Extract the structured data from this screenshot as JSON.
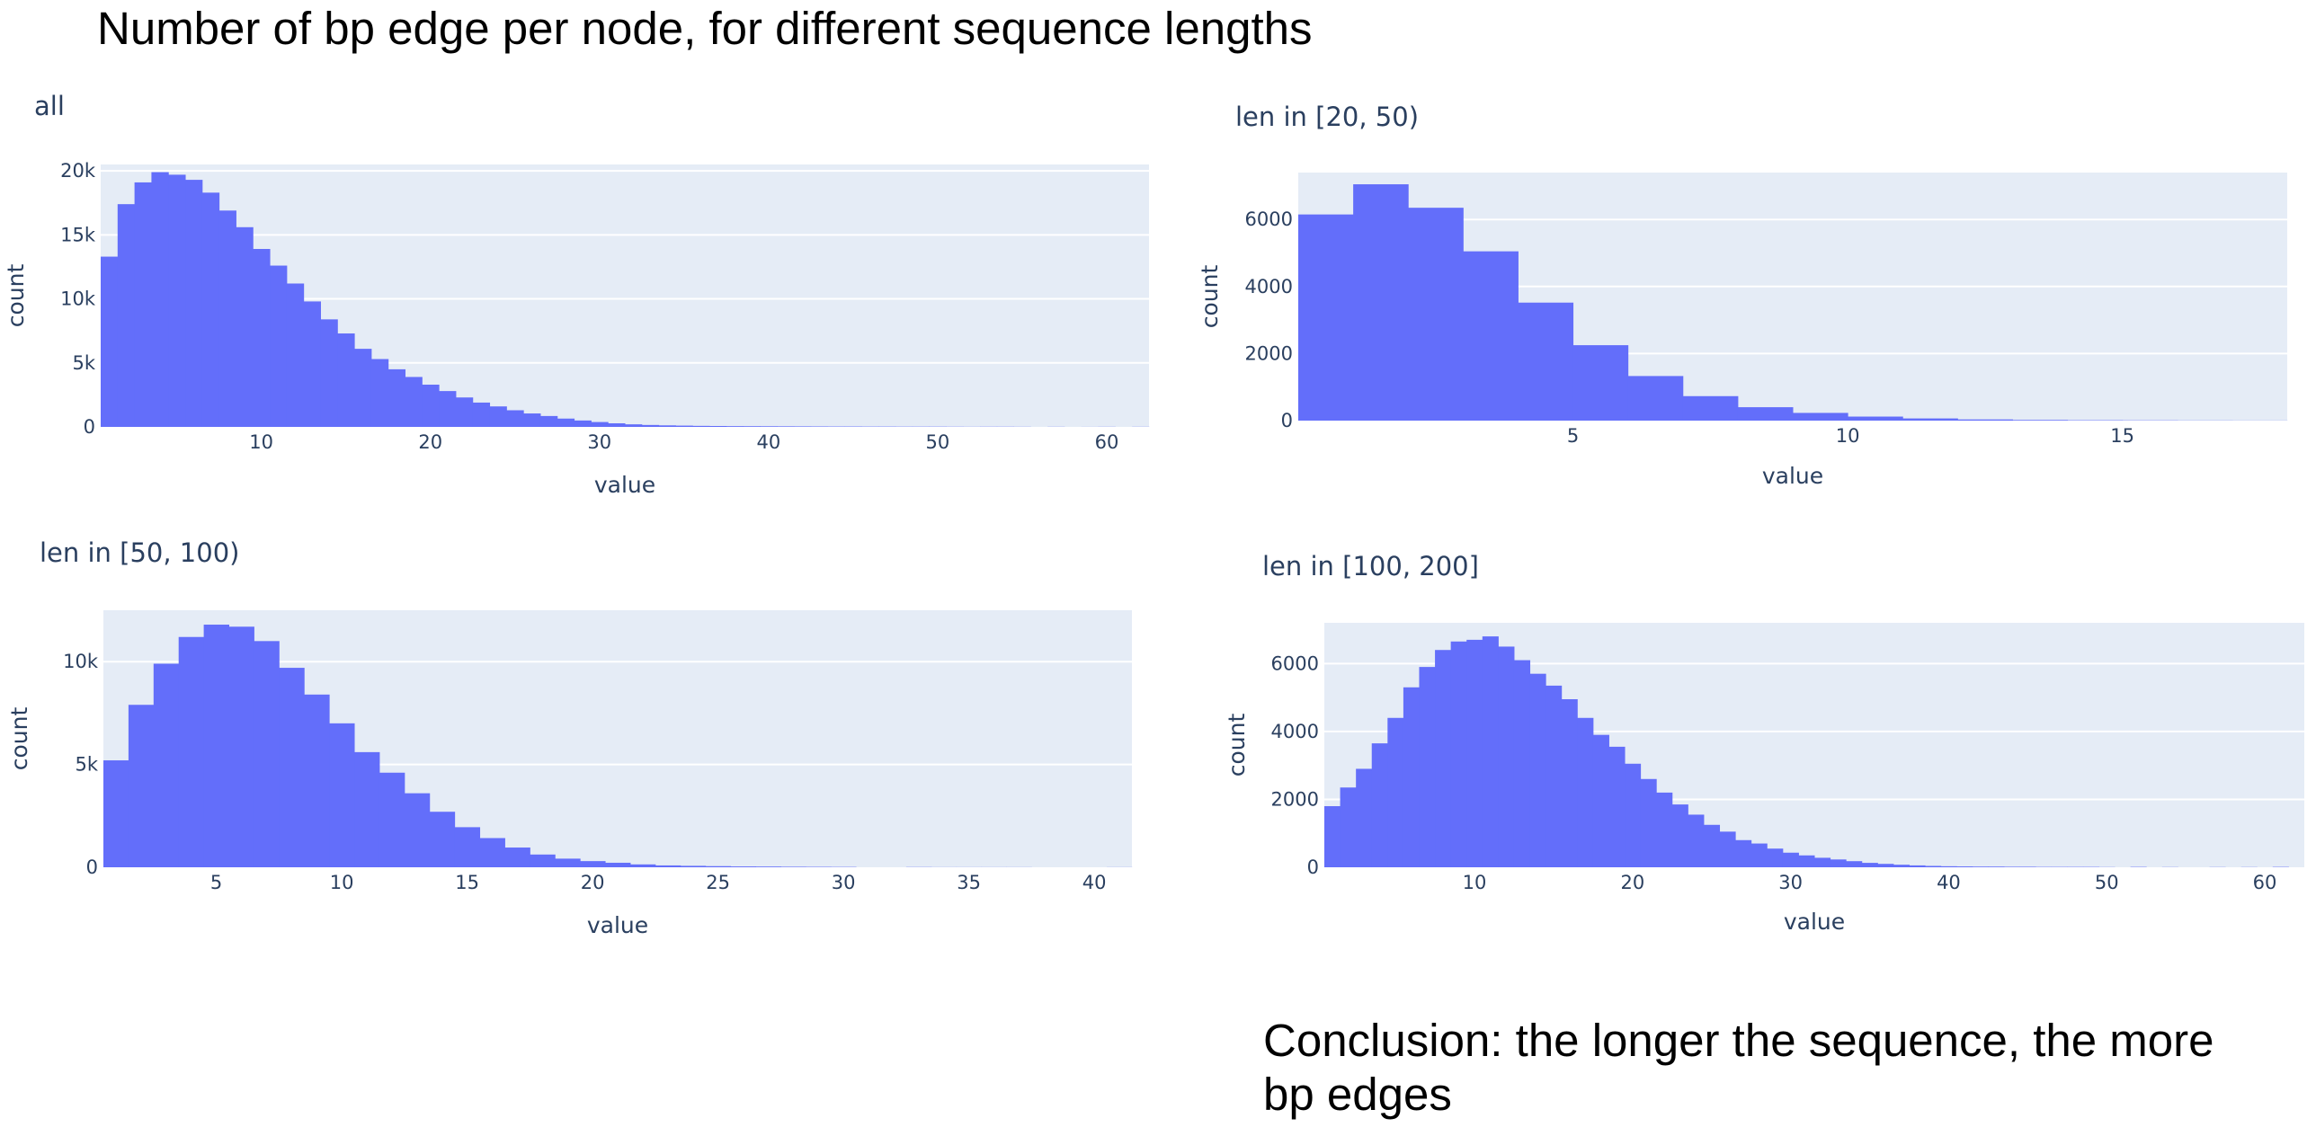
{
  "title": "Number of bp edge per node, for different sequence lengths",
  "conclusion": "Conclusion: the longer the sequence, the more bp edges",
  "colors": {
    "bar": "#636efa",
    "plot_bg": "#e5ecf6",
    "grid": "#ffffff",
    "text": "#2a3f5f"
  },
  "chart_data": [
    {
      "type": "bar",
      "title": "all",
      "xlabel": "value",
      "ylabel": "count",
      "xlim": [
        0.5,
        62.5
      ],
      "ylim": [
        0,
        20500
      ],
      "xticks": [
        10,
        20,
        30,
        40,
        50,
        60
      ],
      "yticks": [
        0,
        5000,
        10000,
        15000,
        20000
      ],
      "ytick_labels": [
        "0",
        "5k",
        "10k",
        "15k",
        "20k"
      ],
      "grid": true,
      "x": [
        1,
        2,
        3,
        4,
        5,
        6,
        7,
        8,
        9,
        10,
        11,
        12,
        13,
        14,
        15,
        16,
        17,
        18,
        19,
        20,
        21,
        22,
        23,
        24,
        25,
        26,
        27,
        28,
        29,
        30,
        31,
        32,
        33,
        34,
        35,
        36,
        37,
        38,
        39,
        40,
        41,
        42,
        43,
        44,
        45,
        46,
        47,
        48,
        49,
        50,
        51,
        52,
        53,
        54,
        55,
        56,
        57,
        58,
        59,
        60,
        61,
        62
      ],
      "values": [
        13300,
        17400,
        19100,
        19900,
        19700,
        19300,
        18300,
        16900,
        15600,
        13900,
        12600,
        11200,
        9800,
        8400,
        7300,
        6100,
        5300,
        4500,
        3900,
        3300,
        2800,
        2300,
        1900,
        1600,
        1300,
        1050,
        850,
        650,
        500,
        380,
        280,
        200,
        150,
        120,
        100,
        80,
        70,
        60,
        55,
        50,
        45,
        40,
        35,
        30,
        30,
        25,
        25,
        20,
        20,
        20,
        15,
        10,
        15,
        15,
        10,
        0,
        10,
        0,
        5,
        10,
        0,
        10
      ]
    },
    {
      "type": "bar",
      "title": "len in [20, 50)",
      "xlabel": "value",
      "ylabel": "count",
      "xlim": [
        0,
        18
      ],
      "ylim": [
        0,
        7400
      ],
      "xticks": [
        5,
        10,
        15
      ],
      "yticks": [
        0,
        2000,
        4000,
        6000
      ],
      "ytick_labels": [
        "0",
        "2000",
        "4000",
        "6000"
      ],
      "grid": true,
      "x": [
        0.5,
        1.5,
        2.5,
        3.5,
        4.5,
        5.5,
        6.5,
        7.5,
        8.5,
        9.5,
        10.5,
        11.5,
        12.5,
        13.5,
        14.5,
        15.5,
        16.5,
        17.5
      ],
      "values": [
        6150,
        7050,
        6350,
        5050,
        3520,
        2250,
        1330,
        730,
        400,
        230,
        120,
        65,
        35,
        20,
        12,
        8,
        5,
        3
      ]
    },
    {
      "type": "bar",
      "title": "len in [50, 100)",
      "xlabel": "value",
      "ylabel": "count",
      "xlim": [
        0.5,
        41.5
      ],
      "ylim": [
        0,
        12500
      ],
      "xticks": [
        5,
        10,
        15,
        20,
        25,
        30,
        35,
        40
      ],
      "yticks": [
        0,
        5000,
        10000
      ],
      "ytick_labels": [
        "0",
        "5k",
        "10k"
      ],
      "grid": true,
      "x": [
        1,
        2,
        3,
        4,
        5,
        6,
        7,
        8,
        9,
        10,
        11,
        12,
        13,
        14,
        15,
        16,
        17,
        18,
        19,
        20,
        21,
        22,
        23,
        24,
        25,
        26,
        27,
        28,
        29,
        30,
        31,
        32,
        33,
        34,
        35,
        36,
        37,
        38,
        39,
        40,
        41
      ],
      "values": [
        5200,
        7900,
        9900,
        11200,
        11800,
        11700,
        11000,
        9700,
        8400,
        7000,
        5600,
        4600,
        3600,
        2700,
        1950,
        1420,
        960,
        620,
        420,
        300,
        220,
        140,
        90,
        70,
        55,
        40,
        35,
        25,
        20,
        15,
        0,
        0,
        10,
        5,
        5,
        5,
        5,
        0,
        0,
        0,
        5
      ]
    },
    {
      "type": "bar",
      "title": "len in [100, 200]",
      "xlabel": "value",
      "ylabel": "count",
      "xlim": [
        0.5,
        62.5
      ],
      "ylim": [
        0,
        7200
      ],
      "xticks": [
        10,
        20,
        30,
        40,
        50,
        60
      ],
      "yticks": [
        0,
        2000,
        4000,
        6000
      ],
      "ytick_labels": [
        "0",
        "2000",
        "4000",
        "6000"
      ],
      "grid": true,
      "x": [
        1,
        2,
        3,
        4,
        5,
        6,
        7,
        8,
        9,
        10,
        11,
        12,
        13,
        14,
        15,
        16,
        17,
        18,
        19,
        20,
        21,
        22,
        23,
        24,
        25,
        26,
        27,
        28,
        29,
        30,
        31,
        32,
        33,
        34,
        35,
        36,
        37,
        38,
        39,
        40,
        41,
        42,
        43,
        44,
        45,
        46,
        47,
        48,
        49,
        50,
        51,
        52,
        53,
        54,
        55,
        56,
        57,
        58,
        59,
        60,
        61,
        62
      ],
      "values": [
        1800,
        2350,
        2900,
        3650,
        4400,
        5300,
        5900,
        6400,
        6650,
        6700,
        6800,
        6500,
        6100,
        5700,
        5350,
        4950,
        4400,
        3900,
        3550,
        3050,
        2600,
        2200,
        1850,
        1550,
        1250,
        1050,
        800,
        700,
        550,
        430,
        350,
        280,
        230,
        180,
        130,
        100,
        75,
        55,
        40,
        30,
        25,
        20,
        20,
        15,
        15,
        10,
        10,
        10,
        10,
        5,
        0,
        10,
        0,
        5,
        0,
        0,
        5,
        0,
        5,
        0,
        10,
        0
      ]
    }
  ]
}
